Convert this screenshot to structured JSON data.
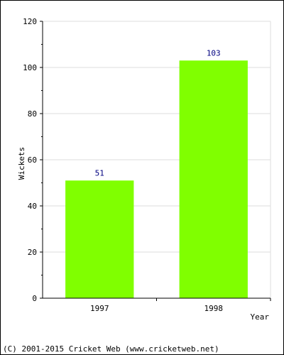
{
  "chart_data": {
    "type": "bar",
    "categories": [
      "1997",
      "1998"
    ],
    "values": [
      51,
      103
    ],
    "data_labels": [
      "51",
      "103"
    ],
    "xlabel": "Year",
    "ylabel": "Wickets",
    "ylim": [
      0,
      120
    ],
    "yticks": [
      0,
      20,
      40,
      60,
      80,
      100,
      120
    ],
    "grid": true,
    "colors": {
      "bar": "#80ff00",
      "data_label": "#000080",
      "grid": "#dddddd",
      "axis": "#000000"
    }
  },
  "footer": {
    "copyright": "(C) 2001-2015 Cricket Web (www.cricketweb.net)"
  }
}
